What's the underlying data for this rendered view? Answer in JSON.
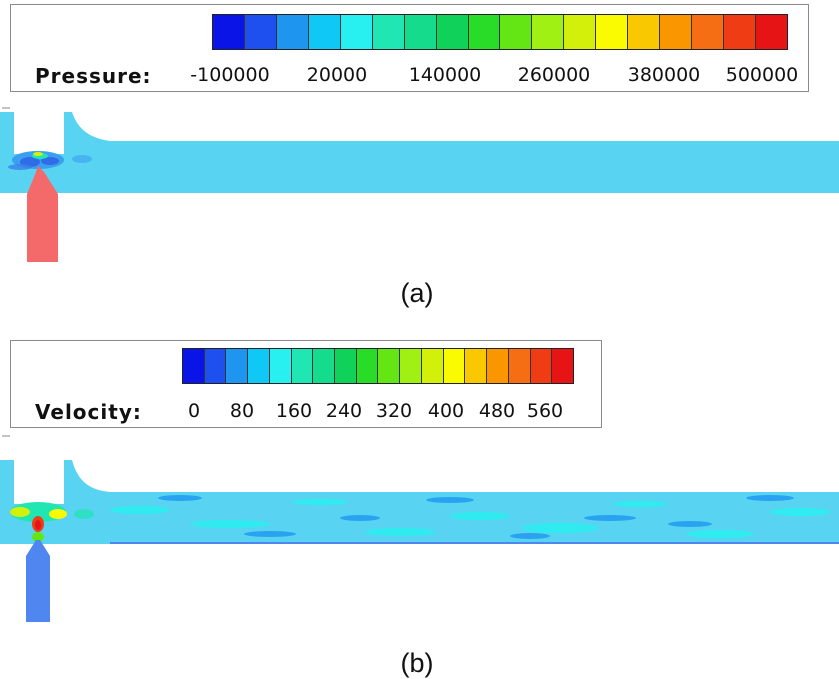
{
  "panel_a": {
    "legend_title": "Pressure:",
    "ticks": [
      "-100000",
      "20000",
      "140000",
      "260000",
      "380000",
      "500000"
    ],
    "colorbar_colors": [
      "#0a14e6",
      "#1e50f0",
      "#1e96f0",
      "#10c8f5",
      "#28f0f0",
      "#20e6b4",
      "#14dc8c",
      "#10d25a",
      "#28dc28",
      "#64e614",
      "#a0f014",
      "#d2f00a",
      "#fafa00",
      "#fac800",
      "#fa9600",
      "#f56e14",
      "#f03c14",
      "#e61414"
    ],
    "label": "(a)"
  },
  "panel_b": {
    "legend_title": "Velocity:",
    "ticks": [
      "0",
      "80",
      "160",
      "240",
      "320",
      "400",
      "480",
      "560"
    ],
    "colorbar_colors": [
      "#0a14e6",
      "#1e50f0",
      "#1e96f0",
      "#10c8f5",
      "#28f0f0",
      "#20e6b4",
      "#14dc8c",
      "#10d25a",
      "#28dc28",
      "#64e614",
      "#a0f014",
      "#d2f00a",
      "#fafa00",
      "#fac800",
      "#fa9600",
      "#f56e14",
      "#f03c14",
      "#e61414"
    ],
    "label": "(b)"
  },
  "colors": {
    "pipe_cyan": "#58d4f2",
    "inlet_red": "#f46a6a",
    "inlet_blue": "#4f86f0"
  }
}
